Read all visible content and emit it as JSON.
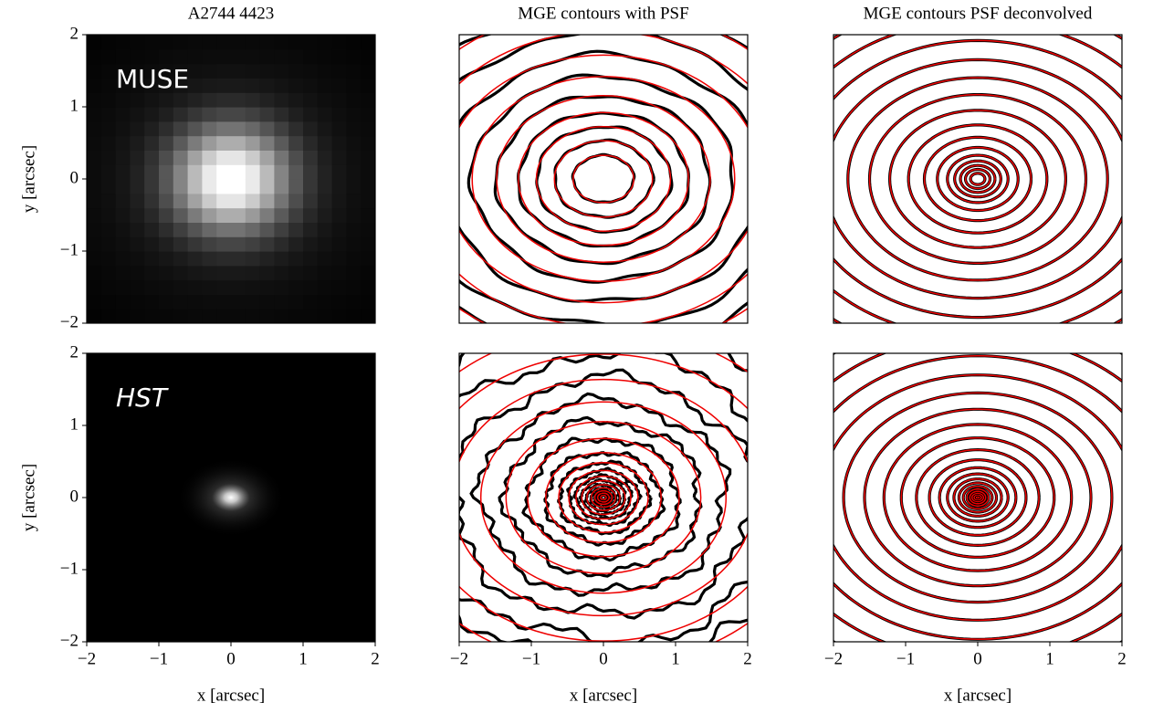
{
  "chart_data": [
    {
      "type": "image",
      "title": "A2744 4423",
      "annotation": "MUSE",
      "ylabel": "y [arcsec]",
      "xlim": [
        -2,
        2
      ],
      "ylim": [
        -2,
        2
      ],
      "yticks": [
        {
          "value": -2,
          "label": "−2"
        },
        {
          "value": -1,
          "label": "−1"
        },
        0,
        1,
        2
      ]
    },
    {
      "type": "contour",
      "title": "MGE contours with PSF",
      "xlim": [
        -2,
        2
      ],
      "ylim": [
        -2,
        2
      ]
    },
    {
      "type": "contour",
      "title": "MGE contours PSF deconvolved",
      "xlim": [
        -2,
        2
      ],
      "ylim": [
        -2,
        2
      ]
    },
    {
      "type": "image",
      "annotation": "HST",
      "xlabel": "x [arcsec]",
      "ylabel": "y [arcsec]",
      "xlim": [
        -2,
        2
      ],
      "ylim": [
        -2,
        2
      ],
      "xticks": [
        {
          "value": -2,
          "label": "−2"
        },
        {
          "value": -1,
          "label": "−1"
        },
        0,
        1,
        2
      ],
      "yticks": [
        {
          "value": -2,
          "label": "−2"
        },
        {
          "value": -1,
          "label": "−1"
        },
        0,
        1,
        2
      ]
    },
    {
      "type": "contour",
      "xlabel": "x [arcsec]",
      "xlim": [
        -2,
        2
      ],
      "ylim": [
        -2,
        2
      ],
      "xticks": [
        {
          "value": -2,
          "label": "−2"
        },
        {
          "value": -1,
          "label": "−1"
        },
        0,
        1,
        2
      ]
    },
    {
      "type": "contour",
      "xlabel": "x [arcsec]",
      "xlim": [
        -2,
        2
      ],
      "ylim": [
        -2,
        2
      ],
      "xticks": [
        {
          "value": -2,
          "label": "−2"
        },
        {
          "value": -1,
          "label": "−1"
        },
        0,
        1,
        2
      ]
    }
  ]
}
